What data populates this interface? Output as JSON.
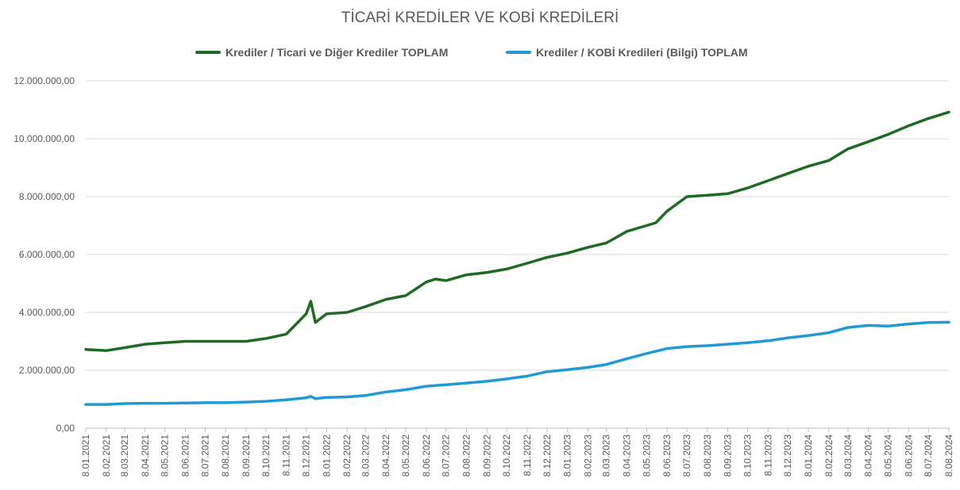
{
  "chart_data": {
    "type": "line",
    "title": "TİCARİ KREDİLER VE KOBİ KREDİLERİ",
    "xlabel": "",
    "ylabel": "",
    "ylim": [
      0,
      12000000
    ],
    "y_ticks": [
      0,
      2000000,
      4000000,
      6000000,
      8000000,
      10000000,
      12000000
    ],
    "y_tick_labels": [
      "0,00",
      "2.000.000,00",
      "4.000.000,00",
      "6.000.000,00",
      "8.000.000,00",
      "10.000.000,00",
      "12.000.000,00"
    ],
    "x_tick_labels": [
      "8.01.2021",
      "8.02.2021",
      "8.03.2021",
      "8.04.2021",
      "8.05.2021",
      "8.06.2021",
      "8.07.2021",
      "8.08.2021",
      "8.09.2021",
      "8.10.2021",
      "8.11.2021",
      "8.12.2021",
      "8.01.2022",
      "8.02.2022",
      "8.03.2022",
      "8.04.2022",
      "8.05.2022",
      "8.06.2022",
      "8.07.2022",
      "8.08.2022",
      "8.09.2022",
      "8.10.2022",
      "8.11.2022",
      "8.12.2022",
      "8.01.2023",
      "8.02.2023",
      "8.03.2023",
      "8.04.2023",
      "8.05.2023",
      "8.06.2023",
      "8.07.2023",
      "8.08.2023",
      "8.09.2023",
      "8.10.2023",
      "8.11.2023",
      "8.12.2023",
      "8.01.2024",
      "8.02.2024",
      "8.03.2024",
      "8.04.2024",
      "8.05.2024",
      "8.06.2024",
      "8.07.2024",
      "8.08.2024"
    ],
    "grid": true,
    "legend_position": "top",
    "series": [
      {
        "name": "Krediler / Ticari ve Diğer Krediler TOPLAM",
        "color": "#1e6b23",
        "points": [
          [
            "8.01.2021",
            2720000
          ],
          [
            "8.02.2021",
            2680000
          ],
          [
            "8.03.2021",
            2780000
          ],
          [
            "8.04.2021",
            2900000
          ],
          [
            "8.05.2021",
            2950000
          ],
          [
            "8.06.2021",
            3000000
          ],
          [
            "8.07.2021",
            3000000
          ],
          [
            "8.08.2021",
            3000000
          ],
          [
            "8.09.2021",
            3000000
          ],
          [
            "8.10.2021",
            3100000
          ],
          [
            "8.11.2021",
            3250000
          ],
          [
            "8.12.2021",
            3950000
          ],
          [
            "15.12.2021",
            4380000
          ],
          [
            "22.12.2021",
            3650000
          ],
          [
            "8.01.2022",
            3950000
          ],
          [
            "8.02.2022",
            4000000
          ],
          [
            "8.03.2022",
            4200000
          ],
          [
            "8.04.2022",
            4450000
          ],
          [
            "8.05.2022",
            4580000
          ],
          [
            "8.06.2022",
            5050000
          ],
          [
            "22.06.2022",
            5150000
          ],
          [
            "8.07.2022",
            5100000
          ],
          [
            "8.08.2022",
            5300000
          ],
          [
            "8.09.2022",
            5380000
          ],
          [
            "8.10.2022",
            5500000
          ],
          [
            "8.11.2022",
            5700000
          ],
          [
            "8.12.2022",
            5900000
          ],
          [
            "8.01.2023",
            6050000
          ],
          [
            "8.02.2023",
            6250000
          ],
          [
            "8.03.2023",
            6400000
          ],
          [
            "8.04.2023",
            6800000
          ],
          [
            "8.05.2023",
            7000000
          ],
          [
            "22.05.2023",
            7100000
          ],
          [
            "8.06.2023",
            7500000
          ],
          [
            "8.07.2023",
            8000000
          ],
          [
            "8.08.2023",
            8050000
          ],
          [
            "8.09.2023",
            8100000
          ],
          [
            "8.10.2023",
            8300000
          ],
          [
            "8.11.2023",
            8550000
          ],
          [
            "8.12.2023",
            8800000
          ],
          [
            "8.01.2024",
            9050000
          ],
          [
            "8.02.2024",
            9250000
          ],
          [
            "8.03.2024",
            9650000
          ],
          [
            "8.04.2024",
            9900000
          ],
          [
            "8.05.2024",
            10150000
          ],
          [
            "8.06.2024",
            10450000
          ],
          [
            "8.07.2024",
            10700000
          ],
          [
            "8.08.2024",
            10920000
          ]
        ]
      },
      {
        "name": "Krediler / KOBİ Kredileri (Bilgi) TOPLAM",
        "color": "#1f9ad6",
        "points": [
          [
            "8.01.2021",
            820000
          ],
          [
            "8.02.2021",
            820000
          ],
          [
            "8.03.2021",
            850000
          ],
          [
            "8.04.2021",
            860000
          ],
          [
            "8.05.2021",
            860000
          ],
          [
            "8.06.2021",
            870000
          ],
          [
            "8.07.2021",
            880000
          ],
          [
            "8.08.2021",
            880000
          ],
          [
            "8.09.2021",
            900000
          ],
          [
            "8.10.2021",
            930000
          ],
          [
            "8.11.2021",
            980000
          ],
          [
            "8.12.2021",
            1050000
          ],
          [
            "15.12.2021",
            1100000
          ],
          [
            "22.12.2021",
            1020000
          ],
          [
            "8.01.2022",
            1060000
          ],
          [
            "8.02.2022",
            1080000
          ],
          [
            "8.03.2022",
            1130000
          ],
          [
            "8.04.2022",
            1250000
          ],
          [
            "8.05.2022",
            1330000
          ],
          [
            "8.06.2022",
            1450000
          ],
          [
            "8.07.2022",
            1500000
          ],
          [
            "8.08.2022",
            1560000
          ],
          [
            "8.09.2022",
            1620000
          ],
          [
            "8.10.2022",
            1700000
          ],
          [
            "8.11.2022",
            1800000
          ],
          [
            "8.12.2022",
            1950000
          ],
          [
            "8.01.2023",
            2020000
          ],
          [
            "8.02.2023",
            2100000
          ],
          [
            "8.03.2023",
            2200000
          ],
          [
            "8.04.2023",
            2400000
          ],
          [
            "8.05.2023",
            2580000
          ],
          [
            "8.06.2023",
            2750000
          ],
          [
            "8.07.2023",
            2820000
          ],
          [
            "8.08.2023",
            2850000
          ],
          [
            "8.09.2023",
            2900000
          ],
          [
            "8.10.2023",
            2950000
          ],
          [
            "8.11.2023",
            3020000
          ],
          [
            "8.12.2023",
            3120000
          ],
          [
            "8.01.2024",
            3200000
          ],
          [
            "8.02.2024",
            3300000
          ],
          [
            "8.03.2024",
            3480000
          ],
          [
            "8.04.2024",
            3550000
          ],
          [
            "8.05.2024",
            3530000
          ],
          [
            "8.06.2024",
            3600000
          ],
          [
            "8.07.2024",
            3650000
          ],
          [
            "8.08.2024",
            3660000
          ]
        ]
      }
    ]
  }
}
